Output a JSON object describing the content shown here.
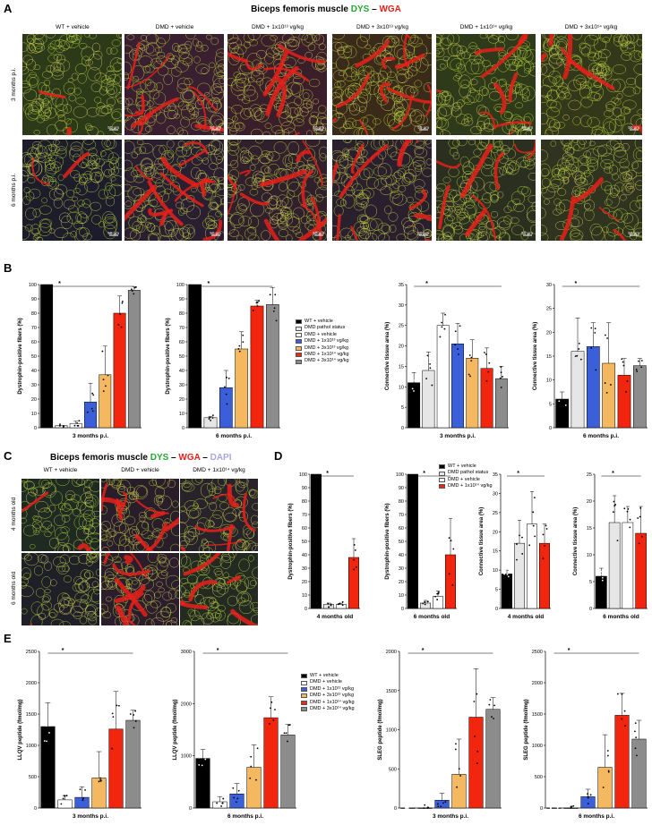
{
  "panels": {
    "A": {
      "label": "A",
      "title_prefix": "Biceps femoris muscle ",
      "title_stain1": "DYS",
      "title_sep": " – ",
      "title_stain2": "WGA",
      "columns": [
        "WT + vehicle",
        "DMD + vehicle",
        "DMD + 1x10¹³ vg/kg",
        "DMD + 3x10¹³ vg/kg",
        "DMD + 1x10¹⁴ vg/kg",
        "DMD + 3x10¹⁴ vg/kg"
      ],
      "rows": [
        "3 months p.i.",
        "6 months p.i."
      ],
      "scale_bar": "50 µm"
    },
    "C": {
      "label": "C",
      "title_prefix": "Biceps femoris muscle ",
      "title_stain1": "DYS",
      "title_sep1": " – ",
      "title_stain2": "WGA",
      "title_sep2": " – ",
      "title_stain3": "DAPI",
      "columns": [
        "WT + vehicle",
        "DMD + vehicle",
        "DMD + 1x10¹⁴ vg/kg"
      ],
      "rows": [
        "4 months old",
        "6 months old"
      ]
    },
    "B": {
      "label": "B"
    },
    "D": {
      "label": "D"
    },
    "E": {
      "label": "E"
    }
  },
  "colors": {
    "wt": "#000000",
    "pathol": "#e6e6e6",
    "vehicle": "#ffffff",
    "d13": "#3a5fd8",
    "d3e13": "#f4b860",
    "d14": "#f2250f",
    "d3e14": "#8c8c8c",
    "dys": "#22a830",
    "wga": "#e8201a",
    "dapi": "#a8a8e0"
  },
  "legends": {
    "B": [
      "WT + vehicle",
      "DMD pathol status",
      "DMD + vehicle",
      "DMD + 1x10¹³ vg/kg",
      "DMD + 3x10¹³ vg/kg",
      "DMD + 1x10¹⁴ vg/kg",
      "DMD + 3x10¹⁴ vg/kg"
    ],
    "D": [
      "WT + vehicle",
      "DMD pathol status",
      "DMD + vehicle",
      "DMD + 1x10¹⁴ vg/kg"
    ],
    "E": [
      "WT + vehicle",
      "DMD + vehicle",
      "DMD + 1x10¹³ vg/kg",
      "DMD + 3x10¹³ vg/kg",
      "DMD + 1x10¹⁴ vg/kg",
      "DMD + 3x10¹⁴ vg/kg"
    ]
  },
  "chart_data": [
    {
      "id": "B1",
      "type": "bar",
      "xlabel": "3 months p.i.",
      "ylabel": "Dystrophin-positive fibers (%)",
      "ylim": [
        0,
        100
      ],
      "yticks": [
        0,
        10,
        20,
        30,
        40,
        50,
        60,
        70,
        80,
        90,
        100
      ],
      "groups": [
        "wt",
        "pathol",
        "vehicle",
        "d13",
        "d3e13",
        "d14",
        "d3e14"
      ],
      "values": [
        100,
        1.5,
        3,
        18,
        37,
        80,
        96
      ],
      "errors": [
        0,
        0,
        1.5,
        13,
        20,
        12,
        2.5
      ]
    },
    {
      "id": "B2",
      "type": "bar",
      "xlabel": "6 months p.i.",
      "ylabel": "Dystrophin-positive fibers (%)",
      "ylim": [
        0,
        100
      ],
      "yticks": [
        0,
        10,
        20,
        30,
        40,
        50,
        60,
        70,
        80,
        90,
        100
      ],
      "groups": [
        "wt",
        "pathol",
        "d13",
        "d3e13",
        "d14",
        "d3e14"
      ],
      "values": [
        100,
        7,
        28,
        55,
        85,
        86
      ],
      "errors": [
        0,
        1,
        12,
        12,
        4,
        12
      ]
    },
    {
      "id": "B3",
      "type": "bar",
      "xlabel": "3 months p.i.",
      "ylabel": "Connective tissue area (%)",
      "ylim": [
        0,
        35
      ],
      "yticks": [
        0,
        5,
        10,
        15,
        20,
        25,
        30,
        35
      ],
      "groups": [
        "wt",
        "pathol",
        "vehicle",
        "d13",
        "d3e13",
        "d14",
        "d3e14"
      ],
      "values": [
        11,
        14,
        25,
        20.5,
        17,
        14.5,
        12
      ],
      "errors": [
        2.5,
        4.5,
        3,
        5,
        4.5,
        5,
        3
      ]
    },
    {
      "id": "B4",
      "type": "bar",
      "xlabel": "6 months p.i.",
      "ylabel": "Connective tissue area (%)",
      "ylim": [
        0,
        30
      ],
      "yticks": [
        0,
        5,
        10,
        15,
        20,
        25,
        30
      ],
      "groups": [
        "wt",
        "pathol",
        "d13",
        "d3e13",
        "d14",
        "d3e14"
      ],
      "values": [
        6,
        16,
        17,
        13.5,
        11,
        13
      ],
      "errors": [
        1.5,
        7,
        5,
        8.5,
        3.5,
        1.5
      ]
    },
    {
      "id": "D1",
      "type": "bar",
      "xlabel": "4 months old",
      "ylabel": "Dystrophin-positive fibers (%)",
      "ylim": [
        0,
        100
      ],
      "yticks": [
        0,
        10,
        20,
        30,
        40,
        50,
        60,
        70,
        80,
        90,
        100
      ],
      "groups": [
        "wt",
        "pathol",
        "vehicle",
        "d14"
      ],
      "values": [
        100,
        3,
        3,
        38
      ],
      "errors": [
        0,
        1,
        1,
        14
      ]
    },
    {
      "id": "D2",
      "type": "bar",
      "xlabel": "6 months old",
      "ylabel": "Dystrophin-positive fibers (%)",
      "ylim": [
        0,
        100
      ],
      "yticks": [
        0,
        10,
        20,
        30,
        40,
        50,
        60,
        70,
        80,
        90,
        100
      ],
      "groups": [
        "wt",
        "pathol",
        "vehicle",
        "d14"
      ],
      "values": [
        100,
        4,
        9,
        40
      ],
      "errors": [
        0,
        2,
        4,
        27
      ]
    },
    {
      "id": "D3",
      "type": "bar",
      "xlabel": "4 months old",
      "ylabel": "Connective tissue area (%)",
      "ylim": [
        0,
        35
      ],
      "yticks": [
        0,
        5,
        10,
        15,
        20,
        25,
        30,
        35
      ],
      "groups": [
        "wt",
        "pathol",
        "vehicle",
        "d14"
      ],
      "values": [
        9,
        17,
        22,
        17
      ],
      "errors": [
        1,
        6,
        8.5,
        5
      ]
    },
    {
      "id": "D4",
      "type": "bar",
      "xlabel": "6 months old",
      "ylabel": "Connective tissue area (%)",
      "ylim": [
        0,
        25
      ],
      "yticks": [
        0,
        5,
        10,
        15,
        20,
        25
      ],
      "groups": [
        "wt",
        "pathol",
        "vehicle",
        "d14"
      ],
      "values": [
        6,
        16,
        16,
        14
      ],
      "errors": [
        1.5,
        5,
        3,
        5
      ]
    },
    {
      "id": "E1",
      "type": "bar",
      "xlabel": "3 months p.i.",
      "ylabel": "LLQV peptide (fmol/mg)",
      "ylim": [
        0,
        2500
      ],
      "yticks": [
        0,
        500,
        1000,
        1500,
        2000,
        2500
      ],
      "groups": [
        "wt",
        "vehicle",
        "d13",
        "d3e13",
        "d14",
        "d3e14"
      ],
      "values": [
        1300,
        130,
        170,
        480,
        1260,
        1400
      ],
      "errors": [
        380,
        70,
        170,
        420,
        600,
        160
      ]
    },
    {
      "id": "E2",
      "type": "bar",
      "xlabel": "6 months p.i.",
      "ylabel": "LLQV peptide (fmol/mg)",
      "ylim": [
        0,
        3000
      ],
      "yticks": [
        0,
        1000,
        2000,
        3000
      ],
      "groups": [
        "wt",
        "vehicle",
        "d13",
        "d3e13",
        "d14",
        "d3e14"
      ],
      "values": [
        950,
        120,
        270,
        780,
        1730,
        1400
      ],
      "errors": [
        170,
        100,
        200,
        430,
        400,
        200
      ]
    },
    {
      "id": "E3",
      "type": "bar",
      "xlabel": "3 months p.i.",
      "ylabel": "SLEG peptide (fmol/mg)",
      "ylim": [
        0,
        2000
      ],
      "yticks": [
        0,
        500,
        1000,
        1500,
        2000
      ],
      "groups": [
        "wt",
        "vehicle",
        "d13",
        "d3e13",
        "d14",
        "d3e14"
      ],
      "values": [
        0,
        0,
        100,
        430,
        1160,
        1260
      ],
      "errors": [
        0,
        0,
        90,
        450,
        620,
        150
      ]
    },
    {
      "id": "E4",
      "type": "bar",
      "xlabel": "6 months p.i.",
      "ylabel": "SLEG peptide (fmol/mg)",
      "ylim": [
        0,
        2500
      ],
      "yticks": [
        0,
        500,
        1000,
        1500,
        2000,
        2500
      ],
      "groups": [
        "wt",
        "vehicle",
        "d13",
        "d3e13",
        "d14",
        "d3e14"
      ],
      "values": [
        0,
        0,
        180,
        650,
        1480,
        1100
      ],
      "errors": [
        0,
        0,
        120,
        520,
        350,
        300
      ]
    }
  ]
}
